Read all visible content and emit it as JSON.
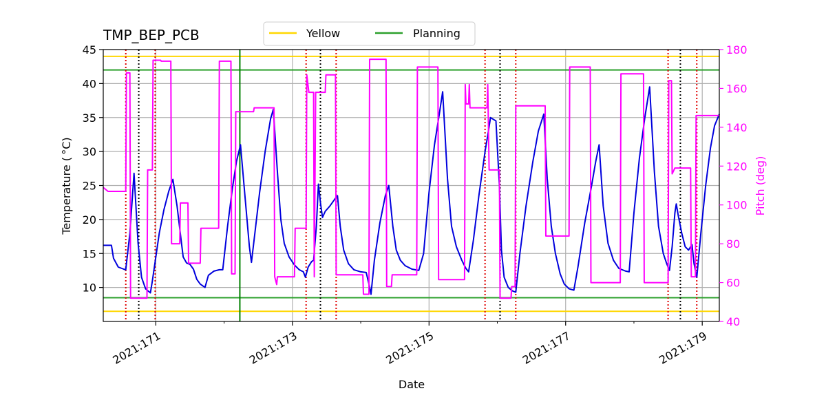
{
  "chart_data": {
    "type": "line",
    "title": "TMP_BEP_PCB",
    "xlabel": "Date",
    "ylabel": "Temperature ($^\\circ$C)",
    "ylabel_display": "Temperature ( °C)",
    "y2label": "Pitch (deg)",
    "xlim": [
      170.23,
      179.25
    ],
    "ylim": [
      5,
      45
    ],
    "y2lim": [
      40,
      180
    ],
    "x_ticks": [
      171,
      173,
      175,
      177,
      179
    ],
    "x_tick_labels": [
      "2021:171",
      "2021:173",
      "2021:175",
      "2021:177",
      "2021:179"
    ],
    "x_minor_ticks": [
      172,
      174,
      176,
      178
    ],
    "y_ticks": [
      10,
      15,
      20,
      25,
      30,
      35,
      40,
      45
    ],
    "y_tick_labels": [
      "10",
      "15",
      "20",
      "25",
      "30",
      "35",
      "40",
      "45"
    ],
    "y2_ticks": [
      40,
      60,
      80,
      100,
      120,
      140,
      160,
      180
    ],
    "y2_tick_labels": [
      "40",
      "60",
      "80",
      "100",
      "120",
      "140",
      "160",
      "180"
    ],
    "grid": true,
    "legend": {
      "placement": "top-center",
      "entries": [
        {
          "name": "Yellow",
          "color": "#FFD700"
        },
        {
          "name": "Planning",
          "color": "#2CA02C"
        }
      ]
    },
    "hlines": [
      {
        "name": "yellow-high",
        "y": 44,
        "color": "#FFD700"
      },
      {
        "name": "yellow-low",
        "y": 6.5,
        "color": "#FFD700"
      },
      {
        "name": "planning-high",
        "y": 42,
        "color": "#2CA02C"
      },
      {
        "name": "planning-low",
        "y": 8.5,
        "color": "#2CA02C"
      }
    ],
    "vlines": [
      {
        "x": 170.56,
        "color": "#E00000",
        "style": "dotted"
      },
      {
        "x": 170.75,
        "color": "#000000",
        "style": "dotted"
      },
      {
        "x": 170.99,
        "color": "#E00000",
        "style": "dotted"
      },
      {
        "x": 172.23,
        "color": "#008000",
        "style": "solid"
      },
      {
        "x": 173.2,
        "color": "#E00000",
        "style": "dotted"
      },
      {
        "x": 173.41,
        "color": "#000000",
        "style": "dotted"
      },
      {
        "x": 173.64,
        "color": "#E00000",
        "style": "dotted"
      },
      {
        "x": 175.82,
        "color": "#E00000",
        "style": "dotted"
      },
      {
        "x": 176.04,
        "color": "#000000",
        "style": "dotted"
      },
      {
        "x": 176.27,
        "color": "#E00000",
        "style": "dotted"
      },
      {
        "x": 178.5,
        "color": "#E00000",
        "style": "dotted"
      },
      {
        "x": 178.68,
        "color": "#000000",
        "style": "dotted"
      },
      {
        "x": 178.92,
        "color": "#E00000",
        "style": "dotted"
      }
    ],
    "series": [
      {
        "name": "temperature",
        "axis": "left",
        "color": "#0000DD",
        "points": [
          [
            170.23,
            16.2
          ],
          [
            170.35,
            16.2
          ],
          [
            170.38,
            14.3
          ],
          [
            170.45,
            13.0
          ],
          [
            170.53,
            12.7
          ],
          [
            170.56,
            12.6
          ],
          [
            170.62,
            18.0
          ],
          [
            170.68,
            26.8
          ],
          [
            170.74,
            16.5
          ],
          [
            170.79,
            11.5
          ],
          [
            170.85,
            9.8
          ],
          [
            170.92,
            9.2
          ],
          [
            170.95,
            11.0
          ],
          [
            171.0,
            14.5
          ],
          [
            171.05,
            18.0
          ],
          [
            171.12,
            21.5
          ],
          [
            171.19,
            24.2
          ],
          [
            171.25,
            25.9
          ],
          [
            171.31,
            22.0
          ],
          [
            171.37,
            17.0
          ],
          [
            171.4,
            14.5
          ],
          [
            171.45,
            13.6
          ],
          [
            171.5,
            13.4
          ],
          [
            171.55,
            12.7
          ],
          [
            171.6,
            11.2
          ],
          [
            171.65,
            10.5
          ],
          [
            171.72,
            10.0
          ],
          [
            171.77,
            11.8
          ],
          [
            171.85,
            12.4
          ],
          [
            171.93,
            12.6
          ],
          [
            171.98,
            12.6
          ],
          [
            172.05,
            19.0
          ],
          [
            172.12,
            24.5
          ],
          [
            172.18,
            28.5
          ],
          [
            172.24,
            31.0
          ],
          [
            172.3,
            24.0
          ],
          [
            172.37,
            16.0
          ],
          [
            172.4,
            13.7
          ],
          [
            172.45,
            18.0
          ],
          [
            172.52,
            24.0
          ],
          [
            172.6,
            30.0
          ],
          [
            172.68,
            34.8
          ],
          [
            172.72,
            36.2
          ],
          [
            172.78,
            27.0
          ],
          [
            172.83,
            20.0
          ],
          [
            172.88,
            16.5
          ],
          [
            172.95,
            14.5
          ],
          [
            173.03,
            13.3
          ],
          [
            173.1,
            12.6
          ],
          [
            173.16,
            12.3
          ],
          [
            173.19,
            11.5
          ],
          [
            173.23,
            13.0
          ],
          [
            173.28,
            13.8
          ],
          [
            173.31,
            14.0
          ],
          [
            173.35,
            19.0
          ],
          [
            173.38,
            25.2
          ],
          [
            173.41,
            22.5
          ],
          [
            173.44,
            20.3
          ],
          [
            173.48,
            21.2
          ],
          [
            173.55,
            22.0
          ],
          [
            173.62,
            23.0
          ],
          [
            173.66,
            23.5
          ],
          [
            173.7,
            19.0
          ],
          [
            173.75,
            15.5
          ],
          [
            173.82,
            13.5
          ],
          [
            173.9,
            12.6
          ],
          [
            174.0,
            12.3
          ],
          [
            174.08,
            12.2
          ],
          [
            174.12,
            10.5
          ],
          [
            174.15,
            9.0
          ],
          [
            174.2,
            14.0
          ],
          [
            174.28,
            19.5
          ],
          [
            174.36,
            23.5
          ],
          [
            174.41,
            25.0
          ],
          [
            174.47,
            19.0
          ],
          [
            174.52,
            15.5
          ],
          [
            174.58,
            14.0
          ],
          [
            174.65,
            13.2
          ],
          [
            174.75,
            12.7
          ],
          [
            174.85,
            12.5
          ],
          [
            174.92,
            15.0
          ],
          [
            175.0,
            24.0
          ],
          [
            175.08,
            31.0
          ],
          [
            175.15,
            35.5
          ],
          [
            175.2,
            38.8
          ],
          [
            175.27,
            26.0
          ],
          [
            175.33,
            19.0
          ],
          [
            175.4,
            16.0
          ],
          [
            175.48,
            14.0
          ],
          [
            175.54,
            12.8
          ],
          [
            175.58,
            12.3
          ],
          [
            175.65,
            17.0
          ],
          [
            175.73,
            23.5
          ],
          [
            175.82,
            30.0
          ],
          [
            175.87,
            33.0
          ],
          [
            175.9,
            35.0
          ],
          [
            175.98,
            34.5
          ],
          [
            176.03,
            25.0
          ],
          [
            176.06,
            15.5
          ],
          [
            176.1,
            11.5
          ],
          [
            176.16,
            10.0
          ],
          [
            176.22,
            9.5
          ],
          [
            176.27,
            9.3
          ],
          [
            176.33,
            15.0
          ],
          [
            176.42,
            22.0
          ],
          [
            176.52,
            28.5
          ],
          [
            176.6,
            33.0
          ],
          [
            176.68,
            35.5
          ],
          [
            176.73,
            26.0
          ],
          [
            176.79,
            19.0
          ],
          [
            176.85,
            15.0
          ],
          [
            176.92,
            12.0
          ],
          [
            176.98,
            10.5
          ],
          [
            177.05,
            9.8
          ],
          [
            177.12,
            9.6
          ],
          [
            177.18,
            13.0
          ],
          [
            177.28,
            19.5
          ],
          [
            177.38,
            25.0
          ],
          [
            177.44,
            28.5
          ],
          [
            177.49,
            31.0
          ],
          [
            177.55,
            22.0
          ],
          [
            177.62,
            16.5
          ],
          [
            177.7,
            14.0
          ],
          [
            177.78,
            12.8
          ],
          [
            177.88,
            12.4
          ],
          [
            177.93,
            12.3
          ],
          [
            178.0,
            21.0
          ],
          [
            178.08,
            29.0
          ],
          [
            178.16,
            35.0
          ],
          [
            178.23,
            39.5
          ],
          [
            178.3,
            27.0
          ],
          [
            178.36,
            19.0
          ],
          [
            178.43,
            15.0
          ],
          [
            178.48,
            13.5
          ],
          [
            178.52,
            12.5
          ],
          [
            178.56,
            16.0
          ],
          [
            178.6,
            21.0
          ],
          [
            178.62,
            22.3
          ],
          [
            178.65,
            20.5
          ],
          [
            178.7,
            18.0
          ],
          [
            178.75,
            16.0
          ],
          [
            178.8,
            15.5
          ],
          [
            178.85,
            16.3
          ],
          [
            178.88,
            13.5
          ],
          [
            178.92,
            11.5
          ],
          [
            178.98,
            18.0
          ],
          [
            179.05,
            25.0
          ],
          [
            179.12,
            30.5
          ],
          [
            179.18,
            33.8
          ],
          [
            179.25,
            35.5
          ]
        ]
      },
      {
        "name": "pitch",
        "axis": "right",
        "color": "#FF00FF",
        "step": true,
        "points": [
          [
            170.23,
            109
          ],
          [
            170.3,
            107
          ],
          [
            170.56,
            107
          ],
          [
            170.57,
            168
          ],
          [
            170.62,
            168
          ],
          [
            170.63,
            52
          ],
          [
            170.87,
            52
          ],
          [
            170.88,
            118
          ],
          [
            170.95,
            118
          ],
          [
            170.96,
            174.5
          ],
          [
            171.07,
            174.5
          ],
          [
            171.08,
            174
          ],
          [
            171.22,
            174
          ],
          [
            171.23,
            80
          ],
          [
            171.35,
            80
          ],
          [
            171.36,
            101
          ],
          [
            171.47,
            101
          ],
          [
            171.48,
            70
          ],
          [
            171.65,
            70
          ],
          [
            171.66,
            88
          ],
          [
            171.92,
            88
          ],
          [
            171.93,
            174
          ],
          [
            172.1,
            174
          ],
          [
            172.11,
            64.5
          ],
          [
            172.16,
            64.5
          ],
          [
            172.17,
            148
          ],
          [
            172.43,
            148
          ],
          [
            172.44,
            150
          ],
          [
            172.73,
            150
          ],
          [
            172.74,
            63
          ],
          [
            172.77,
            59
          ],
          [
            172.78,
            63
          ],
          [
            173.03,
            63
          ],
          [
            173.04,
            88
          ],
          [
            173.2,
            88
          ],
          [
            173.21,
            167
          ],
          [
            173.24,
            158
          ],
          [
            173.31,
            158
          ],
          [
            173.32,
            63
          ],
          [
            173.34,
            158
          ],
          [
            173.48,
            158
          ],
          [
            173.49,
            167
          ],
          [
            173.63,
            167
          ],
          [
            173.64,
            64
          ],
          [
            174.03,
            64
          ],
          [
            174.04,
            54
          ],
          [
            174.12,
            54
          ],
          [
            174.13,
            175
          ],
          [
            174.37,
            175
          ],
          [
            174.38,
            58
          ],
          [
            174.45,
            58
          ],
          [
            174.46,
            64
          ],
          [
            174.82,
            64
          ],
          [
            174.83,
            171
          ],
          [
            175.13,
            171
          ],
          [
            175.14,
            61.5
          ],
          [
            175.52,
            61.5
          ],
          [
            175.53,
            162
          ],
          [
            175.54,
            152
          ],
          [
            175.58,
            152
          ],
          [
            175.59,
            162
          ],
          [
            175.6,
            150
          ],
          [
            175.85,
            150
          ],
          [
            175.86,
            162
          ],
          [
            175.88,
            118
          ],
          [
            176.03,
            118
          ],
          [
            176.04,
            52
          ],
          [
            176.2,
            52
          ],
          [
            176.21,
            58
          ],
          [
            176.26,
            58
          ],
          [
            176.27,
            151
          ],
          [
            176.7,
            151
          ],
          [
            176.71,
            84
          ],
          [
            177.05,
            84
          ],
          [
            177.06,
            171
          ],
          [
            177.36,
            171
          ],
          [
            177.37,
            60
          ],
          [
            177.8,
            60
          ],
          [
            177.81,
            167.5
          ],
          [
            178.14,
            167.5
          ],
          [
            178.15,
            60
          ],
          [
            178.5,
            60
          ],
          [
            178.51,
            164
          ],
          [
            178.55,
            164
          ],
          [
            178.56,
            116
          ],
          [
            178.6,
            119
          ],
          [
            178.83,
            119
          ],
          [
            178.84,
            63
          ],
          [
            178.9,
            63
          ],
          [
            178.91,
            146
          ],
          [
            179.25,
            146
          ]
        ]
      }
    ]
  }
}
